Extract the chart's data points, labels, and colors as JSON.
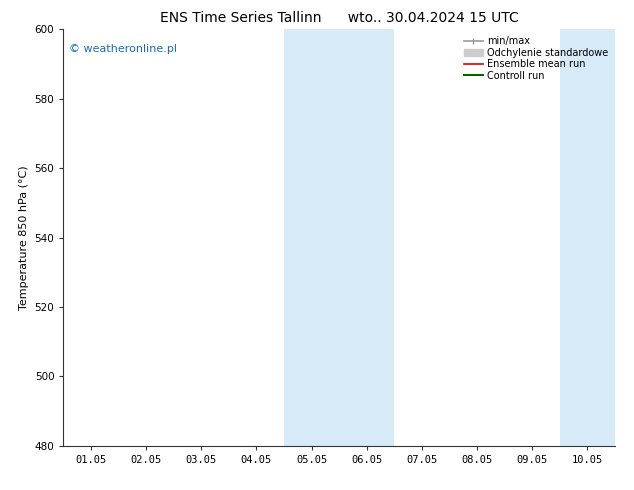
{
  "title_left": "ENS Time Series Tallinn",
  "title_right": "wto.. 30.04.2024 15 UTC",
  "ylabel": "Temperature 850 hPa (°C)",
  "ylim": [
    480,
    600
  ],
  "yticks": [
    480,
    500,
    520,
    540,
    560,
    580,
    600
  ],
  "xtick_labels": [
    "01.05",
    "02.05",
    "03.05",
    "04.05",
    "05.05",
    "06.05",
    "07.05",
    "08.05",
    "09.05",
    "10.05"
  ],
  "xtick_positions": [
    0,
    1,
    2,
    3,
    4,
    5,
    6,
    7,
    8,
    9
  ],
  "xmin": -0.5,
  "xmax": 9.5,
  "shade_bands": [
    {
      "xmin": 3.5,
      "xmax": 5.5
    },
    {
      "xmin": 8.5,
      "xmax": 9.5
    }
  ],
  "shade_color": "#d6eaf8",
  "background_color": "#ffffff",
  "watermark": "© weatheronline.pl",
  "watermark_color": "#1a6bb5",
  "legend_items": [
    {
      "label": "min/max",
      "color": "#999999",
      "lw": 1.2
    },
    {
      "label": "Odchylenie standardowe",
      "color": "#cccccc",
      "lw": 5
    },
    {
      "label": "Ensemble mean run",
      "color": "#dd0000",
      "lw": 1.2
    },
    {
      "label": "Controll run",
      "color": "#006600",
      "lw": 1.5
    }
  ],
  "title_fontsize": 10,
  "tick_fontsize": 7.5,
  "ylabel_fontsize": 8,
  "watermark_fontsize": 8,
  "legend_fontsize": 7
}
